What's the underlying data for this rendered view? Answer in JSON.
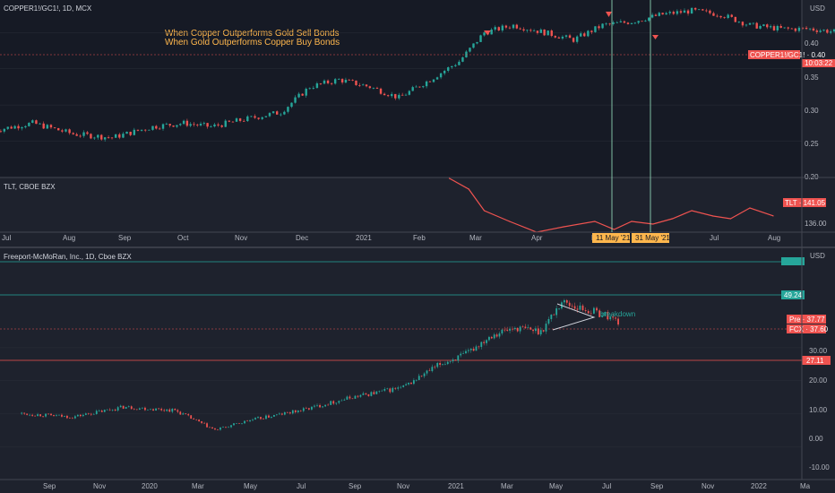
{
  "colors": {
    "background": "#1e222d",
    "up": "#26a69a",
    "down": "#ef5350",
    "annotation": "#ffb74d",
    "vline": "#9be7c4",
    "pane_border": "#434651"
  },
  "pane1": {
    "title": "COPPER1!/GC1!, 1D, MCX",
    "currency": "USD",
    "annotations": [
      "When Copper Outperforms Gold Sell Bonds",
      "When Gold Outperforms Copper Buy Bonds"
    ],
    "last_value_label": "COPPER1!/GC1! · 0.40",
    "countdown": "10:03:22",
    "y_ticks": [
      "0.40",
      "0.35",
      "0.30",
      "0.25",
      "0.20"
    ]
  },
  "pane2": {
    "title": "TLT, CBOE BZX",
    "last_value_label": "TLT · 141.05",
    "y_ticks": [
      "136.00"
    ]
  },
  "top_x_ticks": [
    "Jul",
    "Aug",
    "Sep",
    "Oct",
    "Nov",
    "Dec",
    "2021",
    "Feb",
    "Mar",
    "Apr",
    "May",
    "Jul",
    "Aug"
  ],
  "vline_labels": [
    "11 May '21",
    "31 May '21"
  ],
  "pane3": {
    "title": "Freeport-McMoRan, Inc., 1D, Cboe BZX",
    "currency": "USD",
    "pattern_label": "breakdown",
    "price_tags": [
      "Pre · 37.77",
      "FCX · 37.60",
      "27.11",
      "49.24"
    ],
    "y_ticks": [
      "30.00",
      "20.00",
      "10.00",
      "0.00",
      "-10.00"
    ]
  },
  "bottom_x_ticks": [
    "Sep",
    "Nov",
    "2020",
    "Mar",
    "May",
    "Jul",
    "Sep",
    "Nov",
    "2021",
    "Mar",
    "May",
    "Jul",
    "Sep",
    "Nov",
    "2022",
    "Ma"
  ],
  "chart_data": [
    {
      "type": "candlestick",
      "title": "COPPER1!/GC1!, 1D, MCX",
      "ylim": [
        0.2,
        0.43
      ],
      "x": [
        "2020-06-25",
        "2020-07-15",
        "2020-08-05",
        "2020-08-25",
        "2020-09-15",
        "2020-10-01",
        "2020-10-15",
        "2020-11-01",
        "2020-11-20",
        "2020-12-05",
        "2020-12-20",
        "2021-01-05",
        "2021-01-20",
        "2021-02-05",
        "2021-02-20",
        "2021-03-05",
        "2021-03-20",
        "2021-04-05",
        "2021-04-20",
        "2021-05-05",
        "2021-05-20",
        "2021-06-05",
        "2021-06-20",
        "2021-07-05",
        "2021-07-20",
        "2021-08-05",
        "2021-08-20",
        "2021-09-05"
      ],
      "close": [
        0.265,
        0.275,
        0.26,
        0.255,
        0.27,
        0.275,
        0.27,
        0.28,
        0.29,
        0.325,
        0.335,
        0.325,
        0.31,
        0.335,
        0.36,
        0.4,
        0.41,
        0.4,
        0.39,
        0.41,
        0.415,
        0.425,
        0.43,
        0.425,
        0.41,
        0.405,
        0.405,
        0.4
      ]
    },
    {
      "type": "line",
      "title": "TLT, CBOE BZX",
      "ylim": [
        135,
        155
      ],
      "x": [
        "2021-02-15",
        "2021-02-25",
        "2021-03-05",
        "2021-03-18",
        "2021-04-01",
        "2021-04-15",
        "2021-05-01",
        "2021-05-11",
        "2021-05-20",
        "2021-05-31",
        "2021-06-10",
        "2021-06-20",
        "2021-07-01",
        "2021-07-10",
        "2021-07-20",
        "2021-08-01"
      ],
      "values": [
        155,
        151,
        143,
        139,
        135,
        137,
        139,
        136,
        139,
        138,
        140,
        143,
        141,
        140,
        144,
        141.05
      ]
    },
    {
      "type": "candlestick",
      "title": "Freeport-McMoRan, Inc., 1D, Cboe BZX",
      "ylim": [
        -10,
        55
      ],
      "x": [
        "2019-08-01",
        "2019-10-01",
        "2019-12-01",
        "2020-02-01",
        "2020-03-20",
        "2020-05-01",
        "2020-07-01",
        "2020-09-01",
        "2020-11-01",
        "2020-12-15",
        "2021-01-15",
        "2021-02-15",
        "2021-03-15",
        "2021-04-15",
        "2021-05-10",
        "2021-06-01",
        "2021-07-01",
        "2021-07-20"
      ],
      "close": [
        10,
        9,
        12,
        11,
        5,
        8,
        11,
        15,
        18,
        25,
        28,
        34,
        36,
        35,
        44,
        42,
        40,
        37.6
      ],
      "levels": [
        27.11,
        37.6,
        49.24,
        55
      ]
    }
  ]
}
